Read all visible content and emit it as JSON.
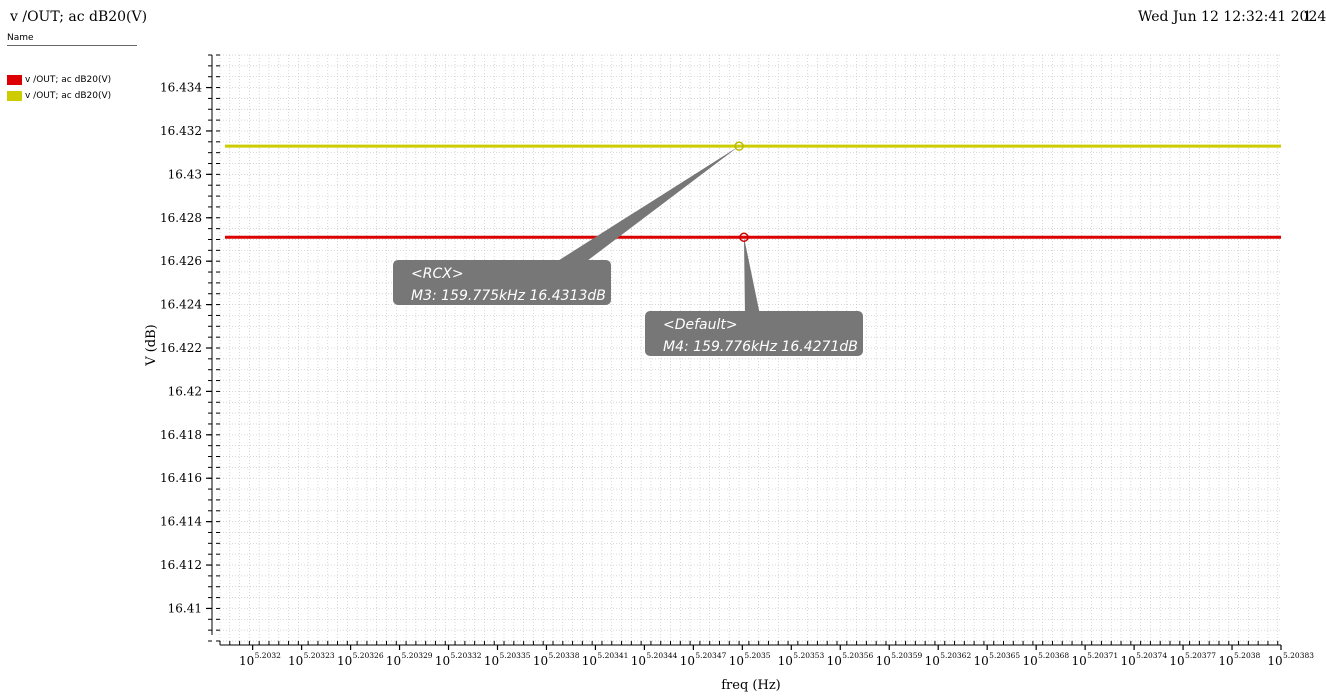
{
  "window": {
    "title": "v /OUT; ac dB20(V)",
    "timestamp": "Wed Jun 12 12:32:41 2024",
    "page": "1"
  },
  "legend": {
    "header": "Name",
    "items": [
      {
        "label": "v /OUT; ac dB20(V)",
        "color": "#dd0000"
      },
      {
        "label": "v /OUT; ac dB20(V)",
        "color": "#cccc00"
      }
    ]
  },
  "chart_data": {
    "type": "line",
    "xlabel": "freq (Hz)",
    "ylabel": "V (dB)",
    "x_scale": "log10",
    "x_tick_base": "10",
    "x_tick_exponents": [
      "5.2032",
      "5.20323",
      "5.20326",
      "5.20329",
      "5.20332",
      "5.20335",
      "5.20338",
      "5.20341",
      "5.20344",
      "5.20347",
      "5.2035",
      "5.20353",
      "5.20356",
      "5.20359",
      "5.20362",
      "5.20365",
      "5.20368",
      "5.20371",
      "5.20374",
      "5.20377",
      "5.2038",
      "5.20383"
    ],
    "xlim_log10": [
      5.20318,
      5.20383
    ],
    "y_ticks": [
      "16.41",
      "16.412",
      "16.414",
      "16.416",
      "16.418",
      "16.42",
      "16.422",
      "16.424",
      "16.426",
      "16.428",
      "16.43",
      "16.432",
      "16.434"
    ],
    "ylim": [
      16.4085,
      16.4355
    ],
    "grid": true,
    "series": [
      {
        "color": "#dd0000",
        "y": 16.4271
      },
      {
        "color": "#cccc00",
        "y": 16.4313
      }
    ],
    "markers": [
      {
        "name": "M3",
        "series": 1,
        "x_log10": 5.203498,
        "y": 16.4313,
        "color": "#cccc00",
        "label_line1": "<RCX>",
        "label_line2": "M3: 159.775kHz 16.4313dB"
      },
      {
        "name": "M4",
        "series": 0,
        "x_log10": 5.203501,
        "y": 16.4271,
        "color": "#dd0000",
        "label_line1": "<Default>",
        "label_line2": "M4: 159.776kHz 16.4271dB"
      }
    ]
  }
}
